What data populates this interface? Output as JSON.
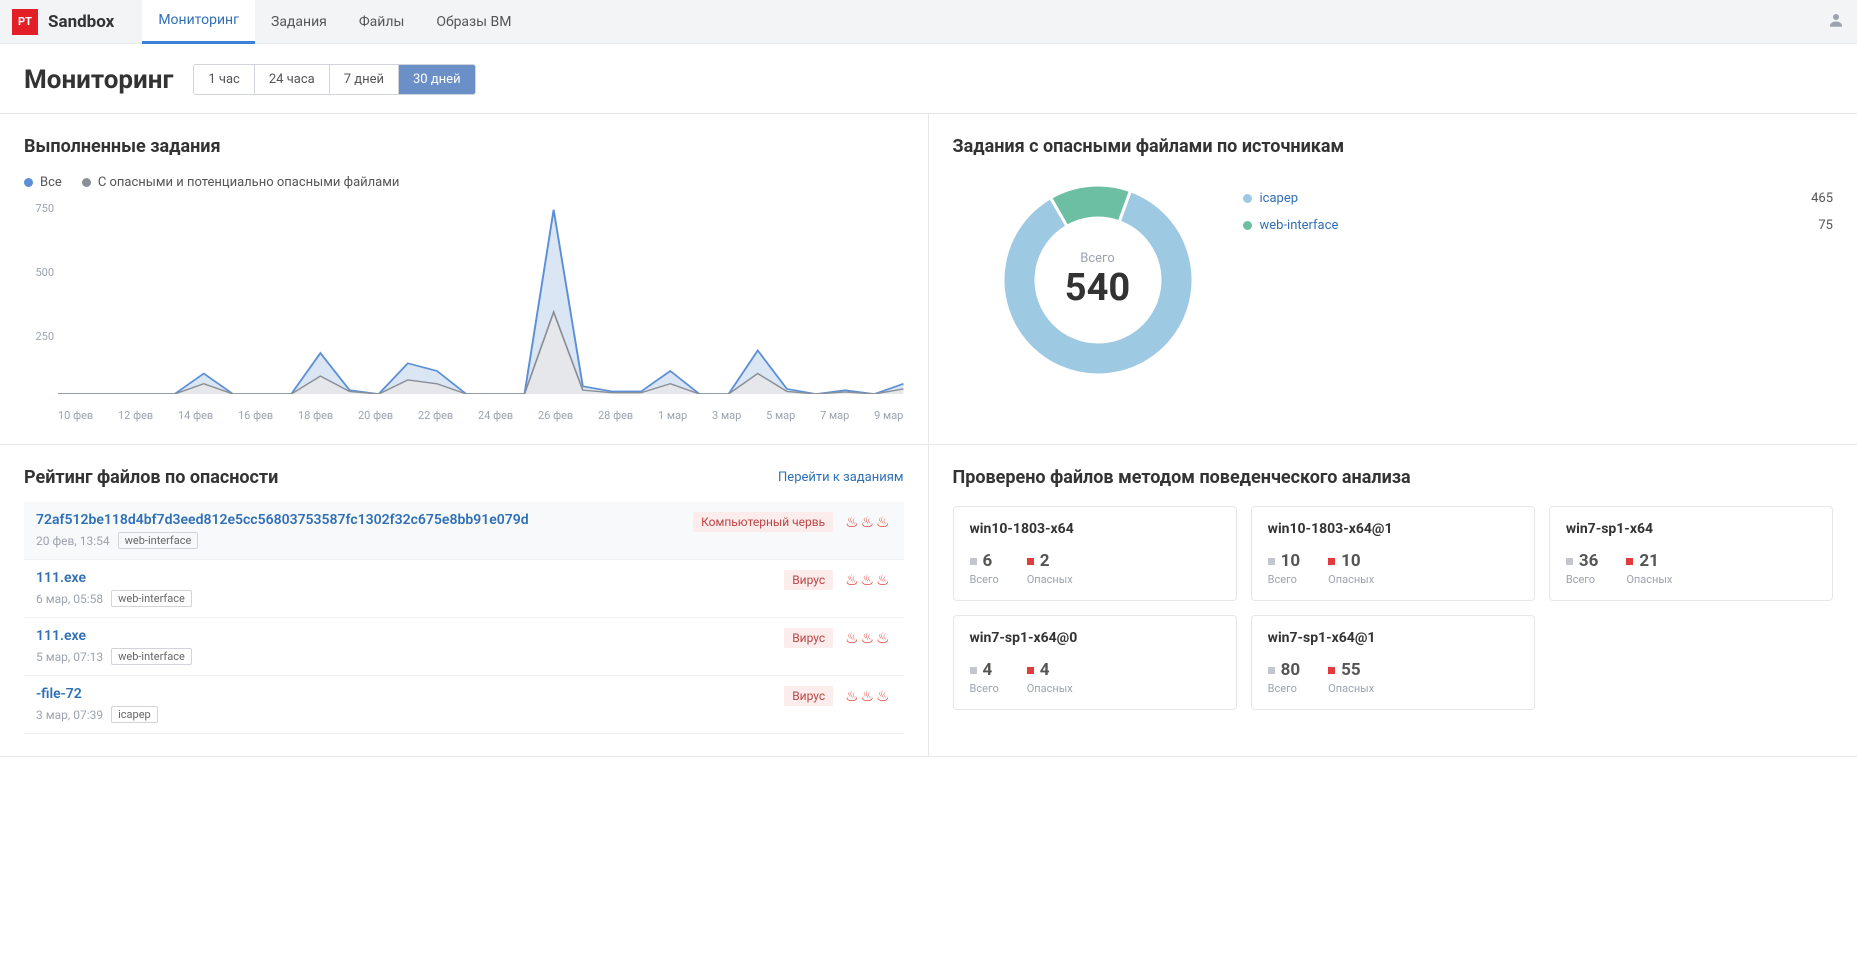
{
  "brand": "Sandbox",
  "logo_text": "PT",
  "nav": {
    "items": [
      "Мониторинг",
      "Задания",
      "Файлы",
      "Образы ВМ"
    ],
    "active_index": 0
  },
  "page_title": "Мониторинг",
  "time_range": {
    "options": [
      "1 час",
      "24 часа",
      "7 дней",
      "30 дней"
    ],
    "active_index": 3
  },
  "completed_tasks": {
    "title": "Выполненные задания",
    "legend": [
      {
        "label": "Все",
        "color": "#5b8fd6"
      },
      {
        "label": "С опасными и потенциально опасными файлами",
        "color": "#8a8f97"
      }
    ],
    "chart": {
      "type": "line",
      "y_ticks": [
        750,
        500,
        250
      ],
      "y_max": 750,
      "x_labels": [
        "10 фев",
        "12 фев",
        "14 фев",
        "16 фев",
        "18 фев",
        "20 фев",
        "22 фев",
        "24 фев",
        "26 фев",
        "28 фев",
        "1 мар",
        "3 мар",
        "5 мар",
        "7 мар",
        "9 мар"
      ],
      "series_all": {
        "color": "#5b8fd6",
        "fill": "#dbe6f4",
        "points": [
          0,
          0,
          0,
          0,
          0,
          80,
          0,
          0,
          0,
          160,
          15,
          0,
          120,
          90,
          0,
          0,
          0,
          720,
          30,
          10,
          10,
          90,
          0,
          0,
          170,
          20,
          0,
          15,
          0,
          40
        ]
      },
      "series_danger": {
        "color": "#8a8f97",
        "fill": "#e6e7ea",
        "points": [
          0,
          0,
          0,
          0,
          0,
          40,
          0,
          0,
          0,
          70,
          10,
          0,
          55,
          40,
          0,
          0,
          0,
          320,
          15,
          5,
          5,
          40,
          0,
          0,
          80,
          10,
          0,
          8,
          0,
          20
        ]
      }
    }
  },
  "tasks_by_source": {
    "title": "Задания с опасными файлами по источникам",
    "center_label": "Всего",
    "total": "540",
    "slices": [
      {
        "name": "icapep",
        "value": "465",
        "color": "#9ec9e2",
        "pct": 86.1
      },
      {
        "name": "web-interface",
        "value": "75",
        "color": "#6dbfa4",
        "pct": 13.9
      }
    ]
  },
  "danger_rating": {
    "title": "Рейтинг файлов по опасности",
    "goto_label": "Перейти к заданиям",
    "items": [
      {
        "name": "72af512be118d4bf7d3eed812e5cc56803753587fc1302f32c675e8bb91e079d",
        "time": "20 фев, 13:54",
        "source": "web-interface",
        "verdict": "Компьютерный червь",
        "flames": 3
      },
      {
        "name": "111.exe",
        "time": "6 мар, 05:58",
        "source": "web-interface",
        "verdict": "Вирус",
        "flames": 3
      },
      {
        "name": "111.exe",
        "time": "5 мар, 07:13",
        "source": "web-interface",
        "verdict": "Вирус",
        "flames": 3
      },
      {
        "name": "-file-72",
        "time": "3 мар, 07:39",
        "source": "icapep",
        "verdict": "Вирус",
        "flames": 3
      }
    ]
  },
  "behavioral": {
    "title": "Проверено файлов методом поведенческого анализа",
    "total_label": "Всего",
    "danger_label": "Опасных",
    "total_color": "#c3c6cc",
    "danger_color": "#e03c3c",
    "vms": [
      {
        "name": "win10-1803-x64",
        "total": "6",
        "danger": "2"
      },
      {
        "name": "win10-1803-x64@1",
        "total": "10",
        "danger": "10"
      },
      {
        "name": "win7-sp1-x64",
        "total": "36",
        "danger": "21"
      },
      {
        "name": "win7-sp1-x64@0",
        "total": "4",
        "danger": "4"
      },
      {
        "name": "win7-sp1-x64@1",
        "total": "80",
        "danger": "55"
      }
    ]
  }
}
